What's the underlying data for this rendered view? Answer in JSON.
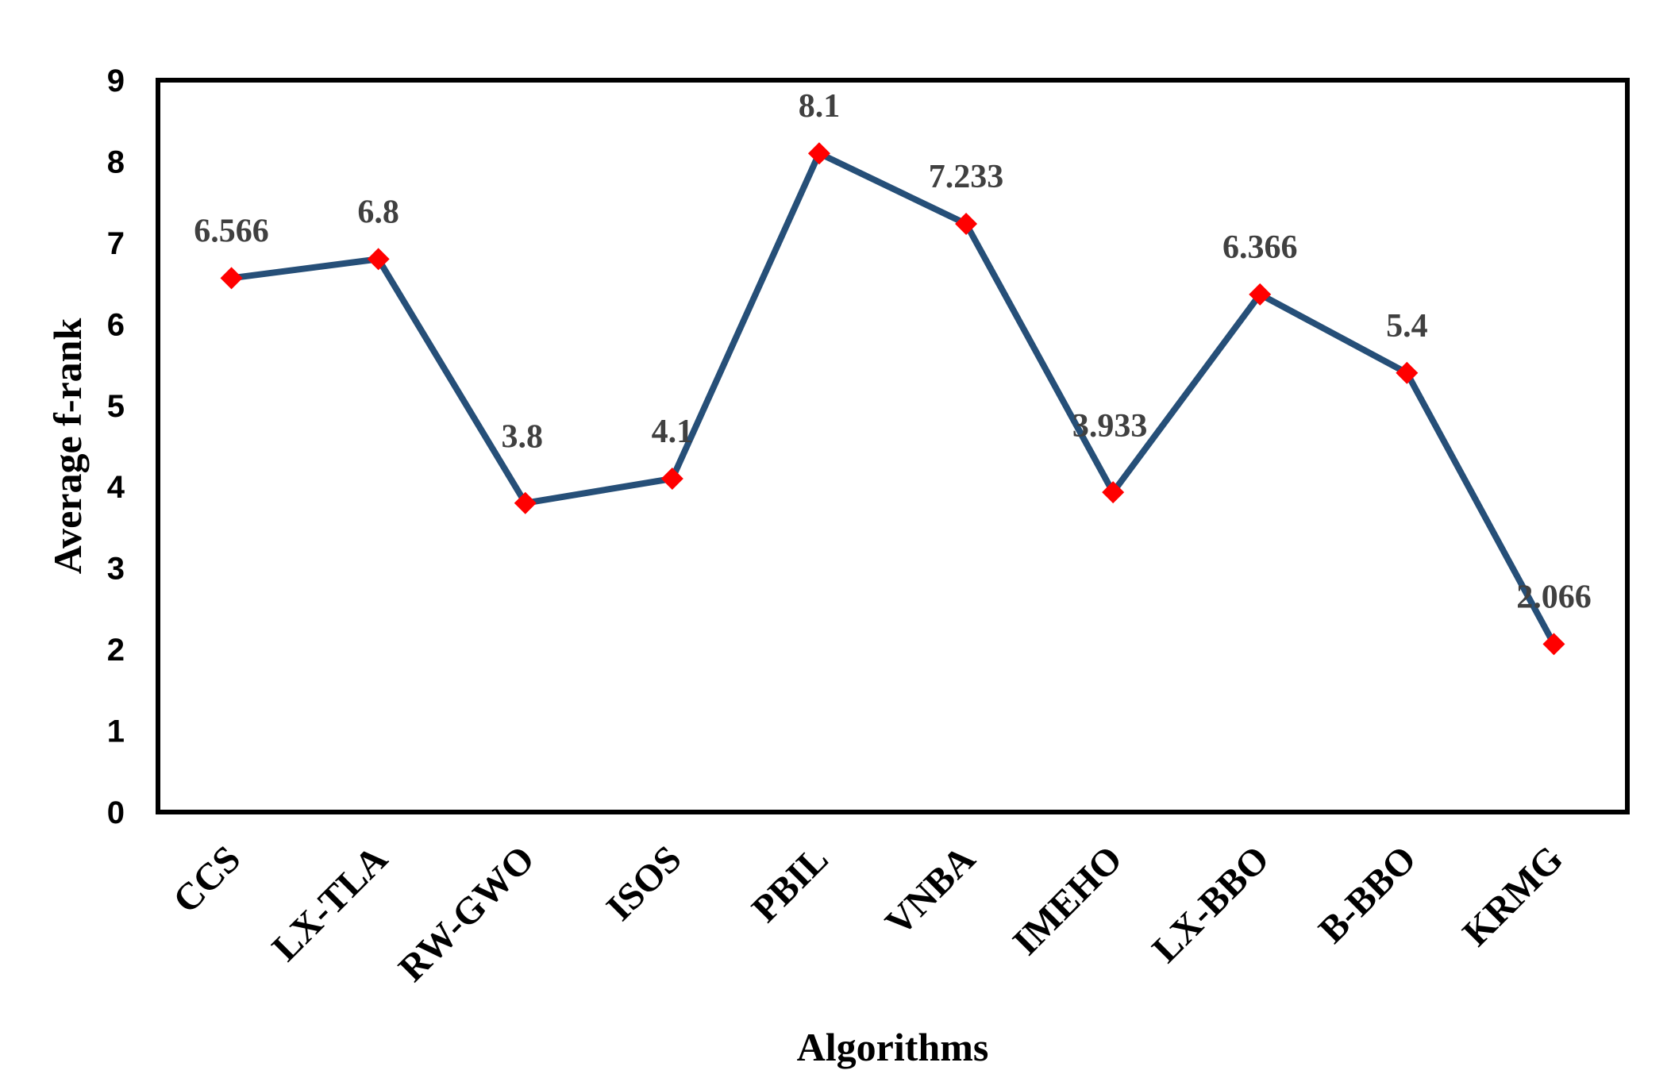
{
  "chart_data": {
    "type": "line",
    "title": "",
    "xlabel": "Algorithms",
    "ylabel": "Average f-rank",
    "categories": [
      "CCS",
      "LX-TLA",
      "RW-GWO",
      "ISOS",
      "PBIL",
      "VNBA",
      "IMEHO",
      "LX-BBO",
      "B-BBO",
      "KRMG"
    ],
    "series": [
      {
        "values": [
          6.566,
          6.8,
          3.8,
          4.1,
          8.1,
          7.233,
          3.933,
          6.366,
          5.4,
          2.066
        ],
        "data_labels": [
          "6.566",
          "6.8",
          "3.8",
          "4.1",
          "8.1",
          "7.233",
          "3.933",
          "6.366",
          "5.4",
          "2.066"
        ],
        "line_color": "#264F78",
        "marker_color": "#FF0000",
        "marker": "diamond"
      }
    ],
    "ylim": [
      0,
      9
    ],
    "yticks": [
      "0",
      "1",
      "2",
      "3",
      "4",
      "5",
      "6",
      "7",
      "8",
      "9"
    ],
    "grid": false,
    "legend": "none",
    "frame_color": "#000000"
  }
}
